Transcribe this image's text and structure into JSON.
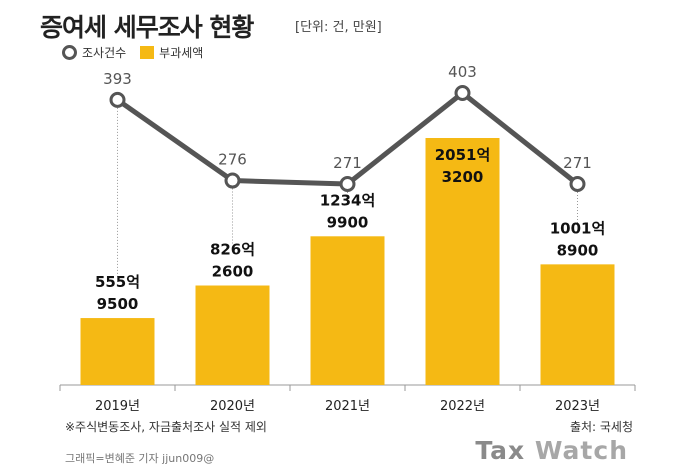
{
  "header": {
    "title": "증여세 세무조사 현황",
    "unit": "[단위: 건, 만원]"
  },
  "legend": {
    "count_label": "조사건수",
    "amount_label": "부과세액"
  },
  "footer": {
    "note": "※주식변동조사, 자금출처조사 실적 제외",
    "source": "출처: 국세청",
    "credit": "그래픽=변혜준 기자 jjun009@",
    "brand_tax": "Tax",
    "brand_watch": "Watch"
  },
  "colors": {
    "bar": "#f5b914",
    "line": "#555555",
    "marker_fill": "#ffffff",
    "guide": "#999999",
    "axis": "#999999"
  },
  "chart_data": {
    "type": "bar",
    "categories": [
      "2019년",
      "2020년",
      "2021년",
      "2022년",
      "2023년"
    ],
    "series": [
      {
        "name": "부과세액",
        "type": "bar",
        "values": [
          5559500,
          8262600,
          12349900,
          20513200,
          10018900
        ],
        "labels_line1": [
          "555억",
          "826억",
          "1234억",
          "2051억",
          "1001억"
        ],
        "labels_line2": [
          "9500",
          "2600",
          "9900",
          "3200",
          "8900"
        ]
      },
      {
        "name": "조사건수",
        "type": "line",
        "values": [
          393,
          276,
          271,
          403,
          271
        ],
        "labels": [
          "393",
          "276",
          "271",
          "403",
          "271"
        ]
      }
    ]
  }
}
